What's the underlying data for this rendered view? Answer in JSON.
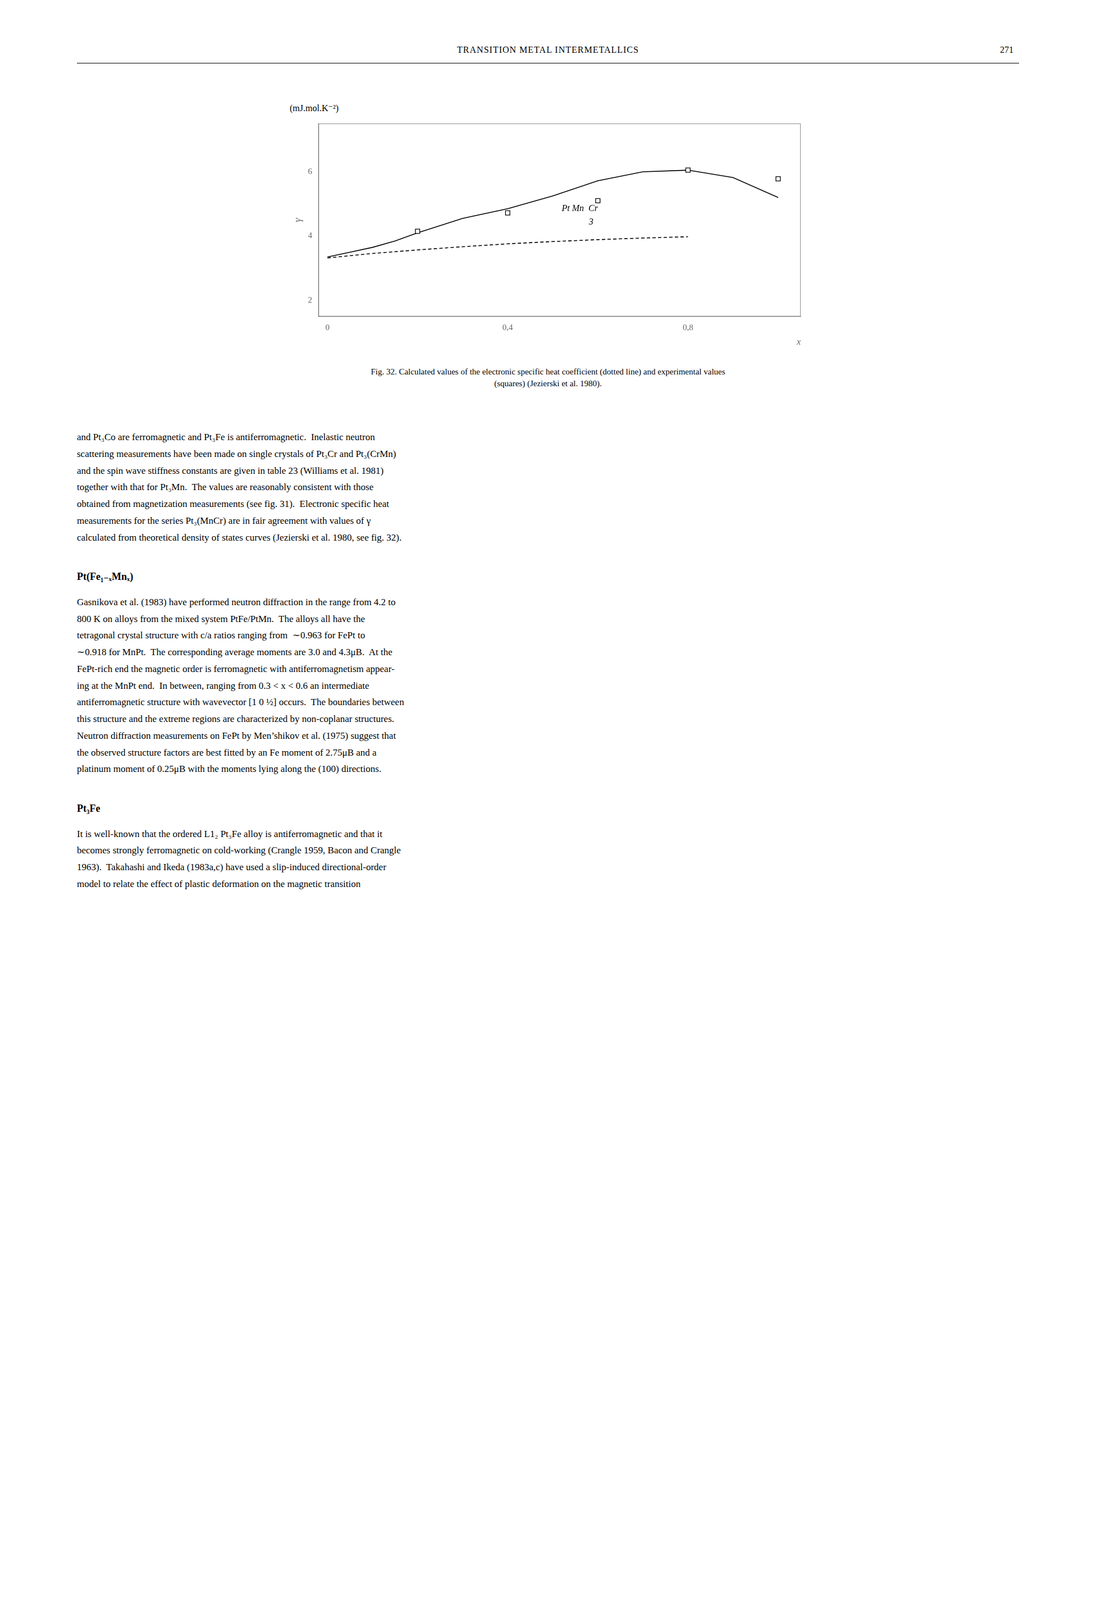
{
  "page_header": "TRANSITION METAL INTERMETALLICS",
  "page_number": "271",
  "chart_data": {
    "type": "line",
    "xlabel": "x",
    "ylabel": "γ",
    "ylabel_units": "(mJ.mol.K⁻²)",
    "xlim": [
      -0.02,
      1.05
    ],
    "xticks": [
      0,
      {
        "value": 0.4,
        "label": "0,4"
      },
      {
        "value": 0.8,
        "label": "0,8"
      }
    ],
    "ylim": [
      1.5,
      7.5
    ],
    "yticks": [
      2,
      4,
      6
    ],
    "grid": false,
    "series": [
      {
        "type": "line",
        "line_style": "solid",
        "color": "#000000",
        "x": [
          0.0,
          0.05,
          0.1,
          0.15,
          0.2,
          0.3,
          0.4,
          0.5,
          0.6,
          0.7,
          0.8,
          0.9,
          1.0
        ],
        "values": [
          3.35,
          3.5,
          3.65,
          3.85,
          4.1,
          4.55,
          4.85,
          5.25,
          5.72,
          6.0,
          6.05,
          5.82,
          5.2
        ]
      },
      {
        "type": "scatter",
        "marker": "square",
        "color": "#000000",
        "x": [
          0.2,
          0.4,
          0.6,
          0.8,
          1.0
        ],
        "values": [
          4.15,
          4.72,
          5.1,
          6.05,
          5.78
        ]
      },
      {
        "type": "line",
        "line_style": "dashed",
        "color": "#000000",
        "x": [
          0.0,
          0.1,
          0.2,
          0.3,
          0.4,
          0.5,
          0.6,
          0.7,
          0.8
        ],
        "values": [
          3.32,
          3.46,
          3.57,
          3.67,
          3.76,
          3.83,
          3.89,
          3.94,
          3.98
        ]
      }
    ],
    "annotations": [
      {
        "text": "Pt Mn  Cr",
        "x": 0.52,
        "y": 4.85
      },
      {
        "text": "3",
        "x": 0.58,
        "y": 4.43
      }
    ]
  },
  "caption_lines": [
    "Fig. 32. Calculated values of the electronic specific heat coefficient (dotted line) and experimental values",
    "(squares) (Jezierski et al. 1980)."
  ],
  "sections": [
    {
      "lines": [
        "and Pt₃Co are ferromagnetic and Pt₃Fe is antiferromagnetic.  Inelastic neutron",
        "scattering measurements have been made on single crystals of Pt₃Cr and Pt₃(CrMn)",
        "and the spin wave stiffness constants are given in table 23 (Williams et al. 1981)",
        "together with that for Pt₃Mn.  The values are reasonably consistent with those",
        "obtained from magnetization measurements (see fig. 31).  Electronic specific heat",
        "measurements for the series Pt₃(MnCr) are in fair agreement with values of γ",
        "calculated from theoretical density of states curves (Jezierski et al. 1980, see fig. 32)."
      ]
    },
    {
      "heading": "Pt(Fe₁₋ₓMnₓ)",
      "lines": [
        "Gasnikova et al. (1983) have performed neutron diffraction in the range from 4.2 to",
        "800 K on alloys from the mixed system PtFe/PtMn.  The alloys all have the",
        "tetragonal crystal structure with c/a ratios ranging from  ∼0.963 for FePt to",
        "∼0.918 for MnPt.  The corresponding average moments are 3.0 and 4.3μB.  At the",
        "FePt-rich end the magnetic order is ferromagnetic with antiferromagnetism appear-",
        "ing at the MnPt end.  In between, ranging from 0.3 < x < 0.6 an intermediate",
        "antiferromagnetic structure with wavevector [1 0 ½] occurs.  The boundaries between",
        "this structure and the extreme regions are characterized by non-coplanar structures.",
        "Neutron diffraction measurements on FePt by Men’shikov et al. (1975) suggest that",
        "the observed structure factors are best fitted by an Fe moment of 2.75μB and a",
        "platinum moment of 0.25μB with the moments lying along the (100) directions."
      ]
    },
    {
      "heading": "Pt₃Fe",
      "lines": [
        "It is well-known that the ordered L1₂ Pt₃Fe alloy is antiferromagnetic and that it",
        "becomes strongly ferromagnetic on cold-working (Crangle 1959, Bacon and Crangle",
        "1963).  Takahashi and Ikeda (1983a,c) have used a slip-induced directional-order",
        "model to relate the effect of plastic deformation on the magnetic transition"
      ]
    }
  ]
}
